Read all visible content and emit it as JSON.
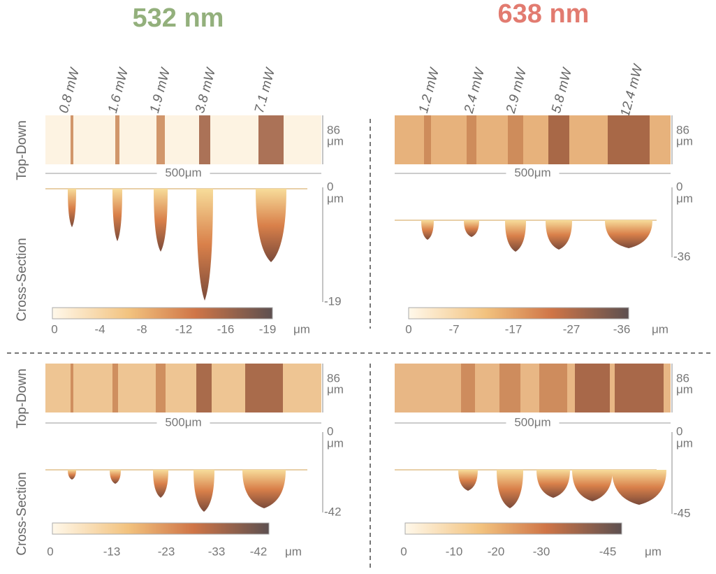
{
  "headers": [
    "532 nm",
    "638 nm"
  ],
  "side_labels": {
    "top_down": "Top-Down",
    "cross_section": "Cross-Section"
  },
  "panels": [
    {
      "powers": [
        "0.8 mW",
        "1.6 mW",
        "1.9 mW",
        "3.8 mW",
        "7.1 mW"
      ],
      "width_value": "86",
      "width_unit": "μm",
      "scale_bar": "500μm",
      "depth_top": "0",
      "depth_unit": "μm",
      "depth_bottom": "-19",
      "colorbar_ticks": [
        "0",
        "-4",
        "-8",
        "-12",
        "-16",
        "-19"
      ],
      "colorbar_unit": "μm"
    },
    {
      "powers": [
        "1.2 mW",
        "2.4 mW",
        "2.9 mW",
        "5.8 mW",
        "12.4 mW"
      ],
      "width_value": "86",
      "width_unit": "μm",
      "scale_bar": "500μm",
      "depth_top": "0",
      "depth_unit": "μm",
      "depth_bottom": "-36",
      "colorbar_ticks": [
        "0",
        "-7",
        "-17",
        "-27",
        "-36"
      ],
      "colorbar_unit": "μm"
    },
    {
      "powers": [],
      "width_value": "86",
      "width_unit": "μm",
      "scale_bar": "500μm",
      "depth_top": "0",
      "depth_unit": "μm",
      "depth_bottom": "-42",
      "colorbar_ticks": [
        "0",
        "-13",
        "-23",
        "-33",
        "-42"
      ],
      "colorbar_unit": "μm"
    },
    {
      "powers": [],
      "width_value": "86",
      "width_unit": "μm",
      "scale_bar": "500μm",
      "depth_top": "0",
      "depth_unit": "μm",
      "depth_bottom": "-45",
      "colorbar_ticks": [
        "0",
        "-10",
        "-20",
        "-30",
        "-45"
      ],
      "colorbar_unit": "μm"
    }
  ]
}
